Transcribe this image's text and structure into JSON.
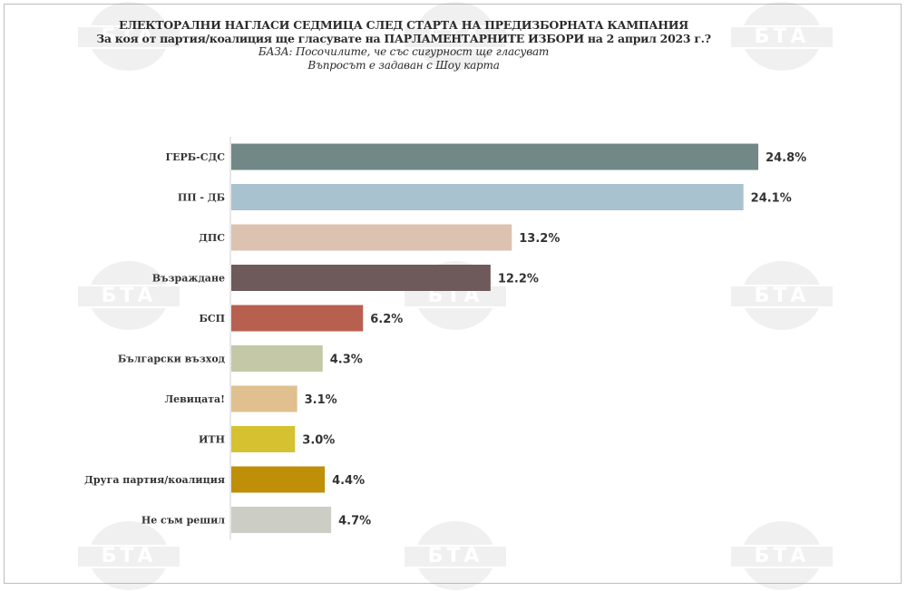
{
  "watermark": {
    "text": "БТА"
  },
  "chart_data": {
    "type": "bar",
    "orientation": "horizontal",
    "title": "ЕЛЕКТОРАЛНИ НАГЛАСИ СЕДМИЦА СЛЕД СТАРТА НА ПРЕДИЗБОРНАТА КАМПАНИЯ",
    "subtitle": "За коя от партия/коалиция ще гласувате на ПАРЛАМЕНТАРНИТЕ ИЗБОРИ на 2 април 2023 г.?",
    "note1": "БАЗА: Посочилите, че със сигурност ще гласуват",
    "note2": "Въпросът е задаван с Шоу карта",
    "categories": [
      "ГЕРБ-СДС",
      "ПП - ДБ",
      "ДПС",
      "Възраждане",
      "БСП",
      "Български възход",
      "Левицата!",
      "ИТН",
      "Друга партия/коалиция",
      "Не съм решил"
    ],
    "values": [
      24.8,
      24.1,
      13.2,
      12.2,
      6.2,
      4.3,
      3.1,
      3.0,
      4.4,
      4.7
    ],
    "value_labels": [
      "24.8%",
      "24.1%",
      "13.2%",
      "12.2%",
      "6.2%",
      "4.3%",
      "3.1%",
      "3.0%",
      "4.4%",
      "4.7%"
    ],
    "colors": [
      "#718887",
      "#a9c2cf",
      "#dcc2b0",
      "#6e5a5b",
      "#b86050",
      "#c4c8a7",
      "#dfc08e",
      "#d6c131",
      "#bf8f08",
      "#cccdc4"
    ],
    "xlim": [
      0,
      26
    ],
    "grid": false,
    "legend": "none"
  }
}
